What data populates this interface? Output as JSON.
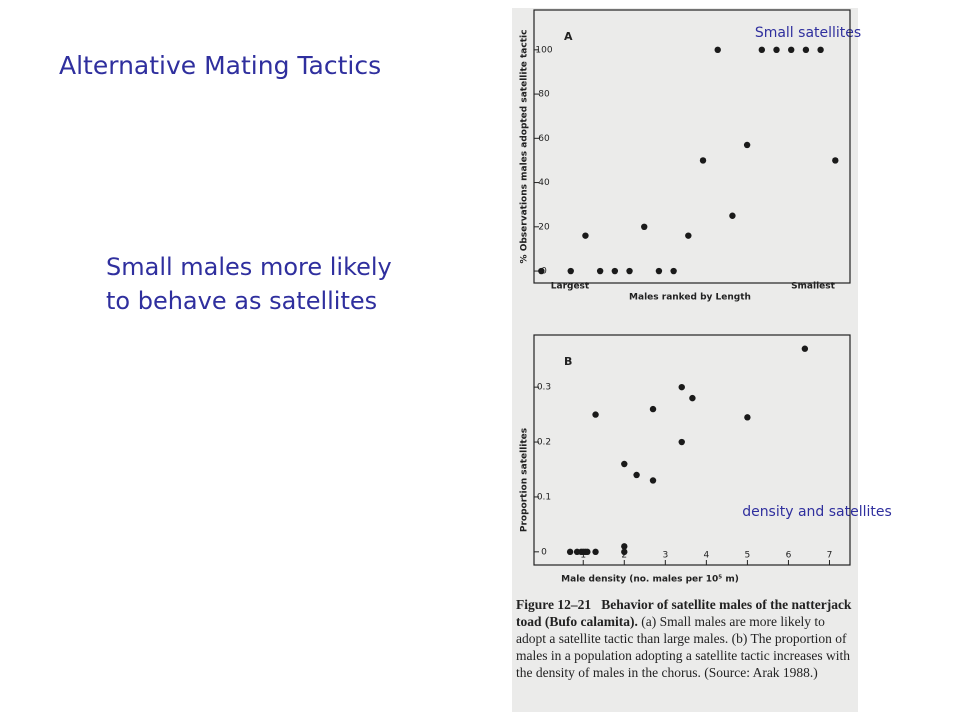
{
  "slide": {
    "title": "Alternative Mating Tactics",
    "body": [
      "Small males more likely",
      "to behave as satellites"
    ],
    "annotations": [
      "Small satellites",
      "density and satellites"
    ]
  },
  "chart_data": [
    {
      "type": "scatter",
      "title": "A",
      "y_label": "% Observations males adopted satellite tactic",
      "x_label": "Males ranked by Length",
      "x_annotations": [
        "Largest",
        "Smallest"
      ],
      "x": [
        1,
        3,
        4,
        5,
        6,
        7,
        8,
        9,
        10,
        11,
        12,
        13,
        14,
        15,
        16,
        17,
        18,
        19,
        20,
        21
      ],
      "values": [
        0,
        0,
        16,
        0,
        0,
        0,
        20,
        0,
        0,
        16,
        50,
        100,
        25,
        57,
        100,
        100,
        100,
        100,
        100,
        50
      ],
      "xlim": [
        0.5,
        22
      ],
      "ylim": [
        -5.4,
        118
      ],
      "yticks": [
        0,
        20,
        40,
        60,
        80,
        100
      ],
      "color": "#1a1a1a"
    },
    {
      "type": "scatter",
      "title": "B",
      "y_label": "Proportion satellites",
      "x_label": "Male density (no. males per 10⁵ m)",
      "x": [
        0.68,
        0.85,
        0.95,
        1.0,
        1.05,
        1.1,
        1.3,
        2.0,
        2.0,
        1.3,
        2.0,
        2.3,
        2.7,
        2.7,
        3.4,
        3.4,
        3.66,
        5.0,
        6.4
      ],
      "values": [
        0,
        0,
        0,
        0,
        0,
        0,
        0,
        0,
        0.01,
        0.25,
        0.16,
        0.14,
        0.13,
        0.26,
        0.2,
        0.3,
        0.28,
        0.245,
        0.37
      ],
      "xlim": [
        -0.2,
        7.5
      ],
      "ylim": [
        -0.024,
        0.395
      ],
      "xticks": [
        1,
        2,
        3,
        4,
        5,
        6,
        7
      ],
      "yticks": [
        0,
        0.1,
        0.2,
        0.3
      ],
      "color": "#1a1a1a"
    }
  ],
  "caption": {
    "label": "Figure 12–21",
    "title": "Behavior of satellite males of the natterjack toad (Bufo calamita).",
    "text": "(a) Small males are more likely to adopt a satellite tactic than large males. (b) The proportion of males in a population adopting a satellite tactic increases with the density of males in the chorus. (Source: Arak 1988.)"
  }
}
